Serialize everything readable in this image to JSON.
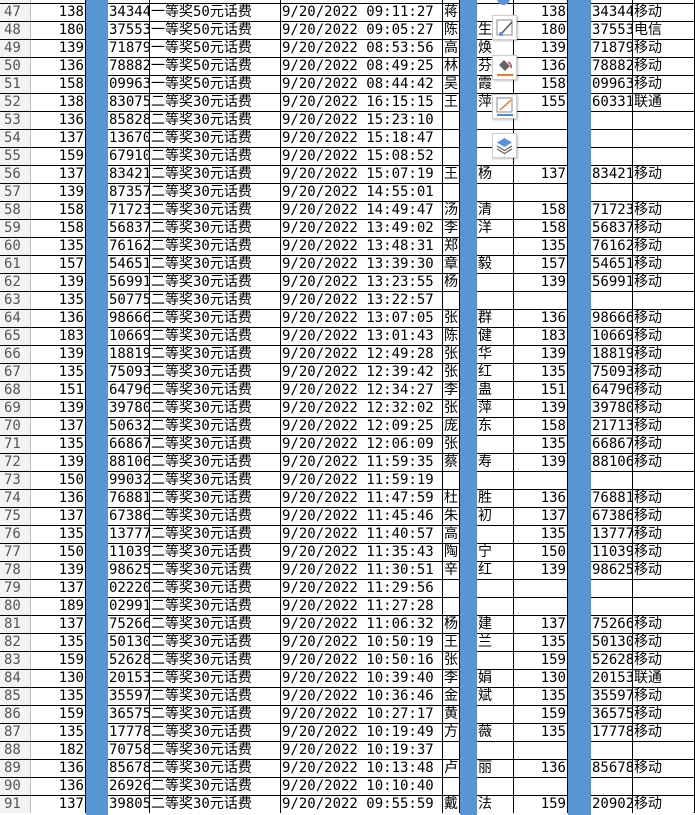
{
  "sheet": {
    "prize_first": "一等奖50元话费",
    "prize_second": "二等奖30元话费",
    "date": "9/20/2022",
    "band_color": "#5795d4",
    "rows": [
      [
        "47",
        "138",
        "34344",
        "一等奖50元话费",
        "9/20/2022 09:11:27",
        "蒋",
        "",
        "138",
        "34344",
        "移动"
      ],
      [
        "48",
        "180",
        "37553",
        "一等奖50元话费",
        "9/20/2022 09:05:27",
        "陈",
        "生",
        "180",
        "37553",
        "电信"
      ],
      [
        "49",
        "139",
        "71879",
        "一等奖50元话费",
        "9/20/2022 08:53:56",
        "高",
        "焕",
        "139",
        "71879",
        "移动"
      ],
      [
        "50",
        "136",
        "78882",
        "一等奖50元话费",
        "9/20/2022 08:49:25",
        "林",
        "芬",
        "136",
        "78882",
        "移动"
      ],
      [
        "51",
        "158",
        "09963",
        "一等奖50元话费",
        "9/20/2022 08:44:42",
        "吴",
        "霞",
        "158",
        "09963",
        "移动"
      ],
      [
        "52",
        "138",
        "83075",
        "二等奖30元话费",
        "9/20/2022 16:15:15",
        "王",
        "萍",
        "155",
        "60331",
        "联通"
      ],
      [
        "53",
        "136",
        "85828",
        "二等奖30元话费",
        "9/20/2022 15:23:10",
        "",
        "",
        "",
        "",
        ""
      ],
      [
        "54",
        "137",
        "13670",
        "二等奖30元话费",
        "9/20/2022 15:18:47",
        "",
        "",
        "",
        "",
        ""
      ],
      [
        "55",
        "159",
        "67910",
        "二等奖30元话费",
        "9/20/2022 15:08:52",
        "",
        "",
        "",
        "",
        ""
      ],
      [
        "56",
        "137",
        "83421",
        "二等奖30元话费",
        "9/20/2022 15:07:19",
        "王",
        "杨",
        "137",
        "83421",
        "移动"
      ],
      [
        "57",
        "139",
        "87357",
        "二等奖30元话费",
        "9/20/2022 14:55:01",
        "",
        "",
        "",
        "",
        ""
      ],
      [
        "58",
        "158",
        "71723",
        "二等奖30元话费",
        "9/20/2022 14:49:47",
        "汤",
        "清",
        "158",
        "71723",
        "移动"
      ],
      [
        "59",
        "158",
        "56837",
        "二等奖30元话费",
        "9/20/2022 13:49:02",
        "李",
        "洋",
        "158",
        "56837",
        "移动"
      ],
      [
        "60",
        "135",
        "76162",
        "二等奖30元话费",
        "9/20/2022 13:48:31",
        "郑",
        "",
        "135",
        "76162",
        "移动"
      ],
      [
        "61",
        "157",
        "54651",
        "二等奖30元话费",
        "9/20/2022 13:39:30",
        "章",
        "毅",
        "157",
        "54651",
        "移动"
      ],
      [
        "62",
        "139",
        "56991",
        "二等奖30元话费",
        "9/20/2022 13:23:55",
        "杨",
        "",
        "139",
        "56991",
        "移动"
      ],
      [
        "63",
        "135",
        "50775",
        "二等奖30元话费",
        "9/20/2022 13:22:57",
        "",
        "",
        "",
        "",
        ""
      ],
      [
        "64",
        "136",
        "98666",
        "二等奖30元话费",
        "9/20/2022 13:07:05",
        "张",
        "群",
        "136",
        "98666",
        "移动"
      ],
      [
        "65",
        "183",
        "10669",
        "二等奖30元话费",
        "9/20/2022 13:01:43",
        "陈",
        "健",
        "183",
        "10669",
        "移动"
      ],
      [
        "66",
        "139",
        "18819",
        "二等奖30元话费",
        "9/20/2022 12:49:28",
        "张",
        "华",
        "139",
        "18819",
        "移动"
      ],
      [
        "67",
        "135",
        "75093",
        "二等奖30元话费",
        "9/20/2022 12:39:42",
        "张",
        "红",
        "135",
        "75093",
        "移动"
      ],
      [
        "68",
        "151",
        "64796",
        "二等奖30元话费",
        "9/20/2022 12:34:27",
        "李",
        "蛊",
        "151",
        "64796",
        "移动"
      ],
      [
        "69",
        "139",
        "39780",
        "二等奖30元话费",
        "9/20/2022 12:32:02",
        "张",
        "萍",
        "139",
        "39780",
        "移动"
      ],
      [
        "70",
        "137",
        "50632",
        "二等奖30元话费",
        "9/20/2022 12:09:25",
        "庞",
        "东",
        "158",
        "21713",
        "移动"
      ],
      [
        "71",
        "135",
        "66867",
        "二等奖30元话费",
        "9/20/2022 12:06:09",
        "张",
        "",
        "135",
        "66867",
        "移动"
      ],
      [
        "72",
        "139",
        "88106",
        "二等奖30元话费",
        "9/20/2022 11:59:35",
        "蔡",
        "寿",
        "139",
        "88106",
        "移动"
      ],
      [
        "73",
        "150",
        "99032",
        "二等奖30元话费",
        "9/20/2022 11:59:19",
        "",
        "",
        "",
        "",
        ""
      ],
      [
        "74",
        "136",
        "76881",
        "二等奖30元话费",
        "9/20/2022 11:47:59",
        "杜",
        "胜",
        "136",
        "76881",
        "移动"
      ],
      [
        "75",
        "137",
        "67386",
        "二等奖30元话费",
        "9/20/2022 11:45:46",
        "朱",
        "初",
        "137",
        "67386",
        "移动"
      ],
      [
        "76",
        "135",
        "13777",
        "二等奖30元话费",
        "9/20/2022 11:40:57",
        "高",
        "",
        "135",
        "13777",
        "移动"
      ],
      [
        "77",
        "150",
        "11039",
        "二等奖30元话费",
        "9/20/2022 11:35:43",
        "陶",
        "宁",
        "150",
        "11039",
        "移动"
      ],
      [
        "78",
        "139",
        "98625",
        "二等奖30元话费",
        "9/20/2022 11:30:51",
        "辛",
        "红",
        "139",
        "98625",
        "移动"
      ],
      [
        "79",
        "137",
        "02220",
        "二等奖30元话费",
        "9/20/2022 11:29:56",
        "",
        "",
        "",
        "",
        ""
      ],
      [
        "80",
        "189",
        "02991",
        "二等奖30元话费",
        "9/20/2022 11:27:28",
        "",
        "",
        "",
        "",
        ""
      ],
      [
        "81",
        "137",
        "75266",
        "二等奖30元话费",
        "9/20/2022 11:06:32",
        "杨",
        "建",
        "137",
        "75266",
        "移动"
      ],
      [
        "82",
        "135",
        "50130",
        "二等奖30元话费",
        "9/20/2022 10:50:19",
        "王",
        "兰",
        "135",
        "50130",
        "移动"
      ],
      [
        "83",
        "159",
        "52628",
        "二等奖30元话费",
        "9/20/2022 10:50:16",
        "张",
        "",
        "159",
        "52628",
        "移动"
      ],
      [
        "84",
        "130",
        "20153",
        "二等奖30元话费",
        "9/20/2022 10:39:40",
        "李",
        "娟",
        "130",
        "20153",
        "联通"
      ],
      [
        "85",
        "135",
        "35597",
        "二等奖30元话费",
        "9/20/2022 10:36:46",
        "金",
        "斌",
        "135",
        "35597",
        "移动"
      ],
      [
        "86",
        "159",
        "36575",
        "二等奖30元话费",
        "9/20/2022 10:27:17",
        "黄",
        "",
        "159",
        "36575",
        "移动"
      ],
      [
        "87",
        "135",
        "17778",
        "二等奖30元话费",
        "9/20/2022 10:19:49",
        "方",
        "薇",
        "135",
        "17778",
        "移动"
      ],
      [
        "88",
        "182",
        "70758",
        "二等奖30元话费",
        "9/20/2022 10:19:37",
        "",
        "",
        "",
        "",
        ""
      ],
      [
        "89",
        "136",
        "85678",
        "二等奖30元话费",
        "9/20/2022 10:13:48",
        "卢",
        "丽",
        "136",
        "85678",
        "移动"
      ],
      [
        "90",
        "136",
        "26926",
        "二等奖30元话费",
        "9/20/2022 10:10:40",
        "",
        "",
        "",
        "",
        ""
      ],
      [
        "91",
        "137",
        "39805",
        "二等奖30元话费",
        "9/20/2022 09:55:59",
        "戴",
        "法",
        "159",
        "20902",
        "移动"
      ]
    ]
  },
  "toolbar": {
    "icons": [
      "edit-border-icon",
      "fill-color-icon",
      "line-color-icon",
      "layers-icon"
    ]
  }
}
